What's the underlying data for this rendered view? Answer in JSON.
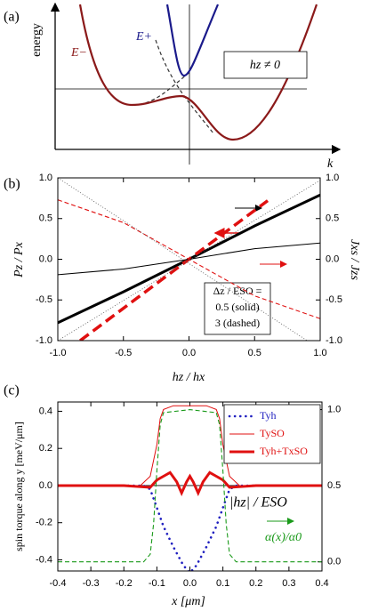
{
  "chart_data": [
    {
      "type": "diagram",
      "panel_label": "(a)",
      "y_label": "energy",
      "x_label": "k",
      "curve_labels": [
        "E+",
        "E−"
      ],
      "annotation": "hz ≠ 0"
    },
    {
      "type": "line",
      "panel_label": "(b)",
      "x_label": "hz / hx",
      "y_label": "Pz / Px",
      "y2_label": "Jxs / Jzs",
      "xlim": [
        -1,
        1
      ],
      "ylim": [
        -1,
        1
      ],
      "y2lim": [
        -1,
        1
      ],
      "xticks": [
        {
          "value": -1,
          "label": "-1.0"
        },
        -0.5,
        {
          "value": 0,
          "label": "0.0"
        },
        0.5,
        {
          "value": 1,
          "label": "1.0"
        }
      ],
      "yticks": [
        {
          "value": -1,
          "label": "-1.0"
        },
        -0.5,
        {
          "value": 0,
          "label": "0.0"
        },
        0.5,
        {
          "value": 1,
          "label": "1.0"
        }
      ],
      "y2ticks": [
        {
          "value": -1,
          "label": "-1.0"
        },
        -0.5,
        {
          "value": 0,
          "label": "0.0"
        },
        0.5,
        {
          "value": 1,
          "label": "1.0"
        }
      ],
      "annotation": [
        "Δz / ESO =",
        "0.5 (solid)",
        "3 (dashed)"
      ],
      "series": [
        {
          "color": "#000000",
          "style": "thick",
          "x": [
            -1,
            -0.5,
            0,
            0.5,
            1
          ],
          "values": [
            -0.78,
            -0.4,
            0,
            0.41,
            0.79
          ]
        },
        {
          "color": "#e01010",
          "style": "thick-dashed",
          "x": [
            -0.83,
            0,
            0.6
          ],
          "values": [
            -1,
            0,
            0.72
          ]
        },
        {
          "color": "#000000",
          "style": "solid",
          "axis": "y2",
          "x": [
            -1,
            -0.5,
            0,
            0.5,
            1
          ],
          "values": [
            -0.19,
            -0.12,
            0,
            0.13,
            0.2
          ]
        },
        {
          "color": "#e01010",
          "style": "dashed",
          "axis": "y2",
          "x": [
            -1,
            -0.5,
            0,
            0.5,
            1
          ],
          "values": [
            0.73,
            0.45,
            0,
            -0.45,
            -0.73
          ]
        },
        {
          "color": "#555555",
          "style": "fine-dotted",
          "x": [
            -1,
            0.9
          ],
          "values": [
            1,
            -1
          ]
        },
        {
          "color": "#555555",
          "style": "fine-dotted",
          "x": [
            -1,
            1
          ],
          "values": [
            -1,
            0.97
          ]
        }
      ]
    },
    {
      "type": "line",
      "panel_label": "(c)",
      "x_label": "x [μm]",
      "y_label": "spin torque along y [meV/μm]",
      "xlim": [
        -0.4,
        0.4
      ],
      "ylim": [
        -0.46,
        0.45
      ],
      "y2lim": [
        -0.06,
        1.05
      ],
      "xticks": [
        -0.4,
        -0.3,
        -0.2,
        -0.1,
        {
          "value": 0,
          "label": "0.0"
        },
        0.1,
        0.2,
        0.3,
        0.4
      ],
      "yticks": [
        -0.4,
        -0.2,
        {
          "value": 0,
          "label": "0.0"
        },
        0.2,
        0.4
      ],
      "y2ticks": [
        {
          "value": 0,
          "label": "0.0"
        },
        0.5,
        {
          "value": 1,
          "label": "1.0"
        }
      ],
      "legend": "upper right",
      "annotation": [
        "|hz| / ESO",
        "α(x)/α0"
      ],
      "series": [
        {
          "name": "Tyh",
          "color": "#2020c0",
          "style": "dotted",
          "x": [
            -0.4,
            -0.14,
            -0.12,
            -0.1,
            -0.08,
            -0.05,
            -0.02,
            0,
            0.02,
            0.05,
            0.08,
            0.1,
            0.12,
            0.14,
            0.4
          ],
          "values": [
            0,
            0,
            -0.02,
            -0.12,
            -0.22,
            -0.33,
            -0.43,
            -0.47,
            -0.43,
            -0.33,
            -0.22,
            -0.12,
            -0.02,
            0,
            0
          ]
        },
        {
          "name": "TySO",
          "color": "#e01010",
          "style": "solid",
          "x": [
            -0.4,
            -0.15,
            -0.12,
            -0.1,
            -0.09,
            -0.08,
            -0.05,
            0,
            0.05,
            0.08,
            0.09,
            0.1,
            0.12,
            0.15,
            0.4
          ],
          "values": [
            0,
            0,
            0.05,
            0.22,
            0.36,
            0.41,
            0.43,
            0.43,
            0.43,
            0.41,
            0.36,
            0.22,
            0.05,
            0,
            0
          ]
        },
        {
          "name": "Tyh+TxSO",
          "color": "#e01010",
          "style": "thick",
          "x": [
            -0.4,
            -0.2,
            -0.12,
            -0.1,
            -0.08,
            -0.06,
            -0.04,
            -0.025,
            -0.01,
            0,
            0.01,
            0.025,
            0.04,
            0.06,
            0.08,
            0.1,
            0.12,
            0.2,
            0.4
          ],
          "values": [
            0,
            0,
            -0.01,
            0.03,
            0.05,
            0.07,
            0.02,
            -0.04,
            0.02,
            0.05,
            0.02,
            -0.04,
            0.02,
            0.07,
            0.05,
            0.03,
            -0.01,
            0,
            0
          ]
        },
        {
          "color": "#1a9a1a",
          "style": "dashed",
          "axis": "y2",
          "x": [
            -0.4,
            -0.14,
            -0.12,
            -0.11,
            -0.1,
            -0.09,
            -0.08,
            0,
            0.08,
            0.09,
            0.1,
            0.11,
            0.12,
            0.14,
            0.4
          ],
          "values": [
            0,
            0,
            0.05,
            0.25,
            0.6,
            0.9,
            0.98,
            1,
            0.98,
            0.9,
            0.6,
            0.25,
            0.05,
            0,
            0
          ]
        }
      ]
    }
  ]
}
